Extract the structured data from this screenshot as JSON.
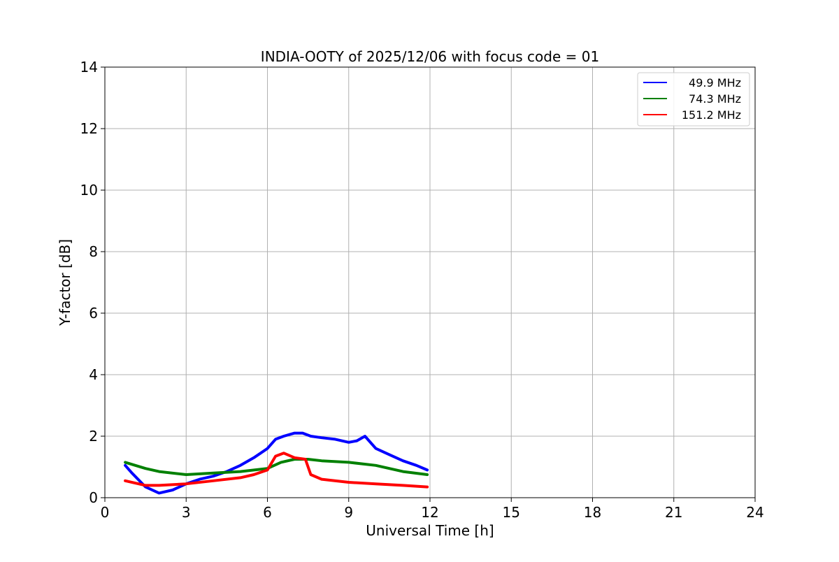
{
  "chart_data": {
    "type": "line",
    "title": "INDIA-OOTY of 2025/12/06 with focus code = 01",
    "xlabel": "Universal Time [h]",
    "ylabel": "Y-factor [dB]",
    "xlim": [
      0,
      24
    ],
    "ylim": [
      0,
      14
    ],
    "xticks": [
      0,
      3,
      6,
      9,
      12,
      15,
      18,
      21,
      24
    ],
    "yticks": [
      0,
      2,
      4,
      6,
      8,
      10,
      12,
      14
    ],
    "grid": true,
    "legend_position": "top-right",
    "series": [
      {
        "name": "49.9 MHz",
        "color": "#0000ff",
        "x": [
          0.75,
          1.0,
          1.5,
          2.0,
          2.5,
          3.0,
          3.5,
          4.0,
          4.5,
          5.0,
          5.5,
          6.0,
          6.3,
          6.6,
          7.0,
          7.3,
          7.6,
          8.0,
          8.5,
          9.0,
          9.3,
          9.6,
          10.0,
          10.5,
          11.0,
          11.5,
          11.9
        ],
        "values": [
          1.05,
          0.8,
          0.35,
          0.15,
          0.25,
          0.45,
          0.6,
          0.7,
          0.85,
          1.05,
          1.3,
          1.6,
          1.9,
          2.0,
          2.1,
          2.1,
          2.0,
          1.95,
          1.9,
          1.8,
          1.85,
          2.0,
          1.6,
          1.4,
          1.2,
          1.05,
          0.9
        ]
      },
      {
        "name": "74.3 MHz",
        "color": "#008000",
        "x": [
          0.75,
          1.5,
          2.0,
          3.0,
          4.0,
          5.0,
          6.0,
          6.5,
          7.0,
          7.5,
          8.0,
          9.0,
          10.0,
          10.5,
          11.0,
          11.9
        ],
        "values": [
          1.15,
          0.95,
          0.85,
          0.75,
          0.8,
          0.85,
          0.95,
          1.15,
          1.25,
          1.25,
          1.2,
          1.15,
          1.05,
          0.95,
          0.85,
          0.75
        ]
      },
      {
        "name": "151.2 MHz",
        "color": "#ff0000",
        "x": [
          0.75,
          1.5,
          2.0,
          3.0,
          4.0,
          5.0,
          5.5,
          6.0,
          6.3,
          6.6,
          7.0,
          7.4,
          7.6,
          8.0,
          9.0,
          10.0,
          11.0,
          11.9
        ],
        "values": [
          0.55,
          0.4,
          0.4,
          0.45,
          0.55,
          0.65,
          0.75,
          0.9,
          1.35,
          1.45,
          1.3,
          1.25,
          0.75,
          0.6,
          0.5,
          0.45,
          0.4,
          0.35
        ]
      }
    ]
  }
}
